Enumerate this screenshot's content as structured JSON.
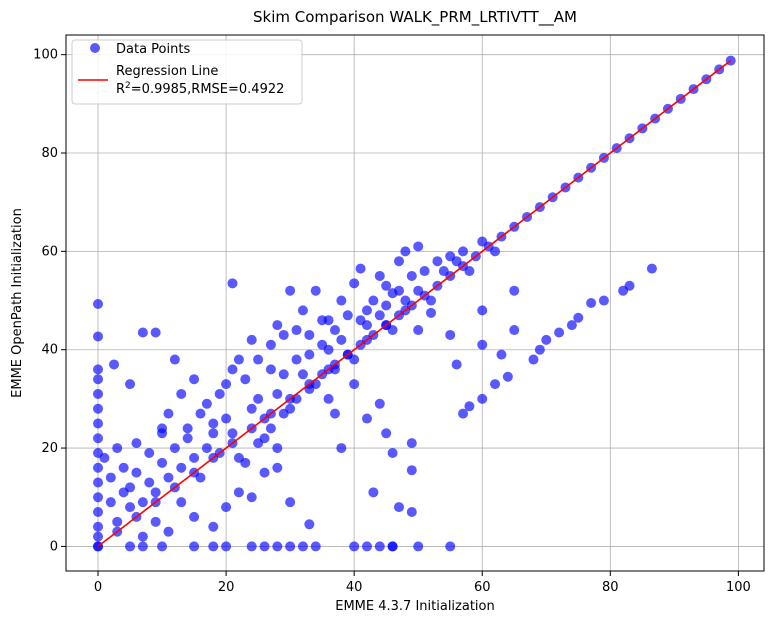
{
  "chart_data": {
    "type": "scatter",
    "title": "Skim Comparison WALK_PRM_LRTIVTT__AM",
    "xlabel": "EMME 4.3.7 Initialization",
    "ylabel": "EMME OpenPath Initialization",
    "xlim": [
      -5,
      104
    ],
    "ylim": [
      -5,
      104
    ],
    "xticks": [
      0,
      20,
      40,
      60,
      80,
      100
    ],
    "yticks": [
      0,
      20,
      40,
      60,
      80,
      100
    ],
    "grid": true,
    "legend_position": "top-left",
    "legend": {
      "points_label": "Data Points",
      "line_label": "Regression Line",
      "stats_r2": "=0.9985,RMSE=0.4922"
    },
    "colors": {
      "points": "#0000ff",
      "line": "#ff0000",
      "grid": "#b0b0b0"
    },
    "series": [
      {
        "name": "Data Points",
        "points": [
          [
            0,
            0
          ],
          [
            0,
            49.3
          ],
          [
            0,
            42.7
          ],
          [
            0,
            36
          ],
          [
            0,
            34
          ],
          [
            0,
            31
          ],
          [
            0,
            28
          ],
          [
            0,
            25
          ],
          [
            0,
            22
          ],
          [
            0,
            19
          ],
          [
            0,
            16
          ],
          [
            0,
            13
          ],
          [
            0,
            10
          ],
          [
            0,
            7
          ],
          [
            0,
            4
          ],
          [
            0,
            2
          ],
          [
            2.5,
            37
          ],
          [
            5,
            33
          ],
          [
            7,
            43.5
          ],
          [
            9,
            43.5
          ],
          [
            12,
            38
          ],
          [
            1,
            18
          ],
          [
            3,
            20
          ],
          [
            2,
            14
          ],
          [
            4,
            16
          ],
          [
            6,
            21
          ],
          [
            5,
            12
          ],
          [
            8,
            19
          ],
          [
            10,
            23
          ],
          [
            11,
            27
          ],
          [
            13,
            31
          ],
          [
            15,
            34
          ],
          [
            17,
            29
          ],
          [
            18,
            25
          ],
          [
            20,
            33
          ],
          [
            21,
            53.5
          ],
          [
            22,
            38
          ],
          [
            24,
            42
          ],
          [
            25,
            30
          ],
          [
            27,
            41
          ],
          [
            28,
            45
          ],
          [
            29,
            35
          ],
          [
            30,
            52
          ],
          [
            31,
            44
          ],
          [
            32,
            48
          ],
          [
            33,
            39
          ],
          [
            34,
            52
          ],
          [
            35,
            41
          ],
          [
            36,
            46
          ],
          [
            37,
            36
          ],
          [
            38,
            50
          ],
          [
            40,
            53.5
          ],
          [
            41,
            56.5
          ],
          [
            42,
            48
          ],
          [
            44,
            55
          ],
          [
            45,
            53
          ],
          [
            46,
            51.5
          ],
          [
            47,
            58
          ],
          [
            48,
            60
          ],
          [
            50,
            61
          ],
          [
            36,
            30
          ],
          [
            37,
            27
          ],
          [
            38,
            20
          ],
          [
            40,
            33
          ],
          [
            42,
            26
          ],
          [
            44,
            29
          ],
          [
            45,
            23
          ],
          [
            46,
            19
          ],
          [
            47,
            8
          ],
          [
            49,
            21
          ],
          [
            49,
            15.5
          ],
          [
            49,
            7
          ],
          [
            33,
            4.5
          ],
          [
            30,
            9
          ],
          [
            28,
            16
          ],
          [
            26,
            15
          ],
          [
            24,
            10
          ],
          [
            22,
            11
          ],
          [
            20,
            8
          ],
          [
            18,
            4
          ],
          [
            15,
            6
          ],
          [
            13,
            9
          ],
          [
            11,
            3
          ],
          [
            9,
            5
          ],
          [
            7,
            2
          ],
          [
            0,
            0
          ],
          [
            5,
            0
          ],
          [
            7,
            0
          ],
          [
            10,
            0
          ],
          [
            15,
            0
          ],
          [
            18,
            0
          ],
          [
            20,
            0
          ],
          [
            24,
            0
          ],
          [
            26,
            0
          ],
          [
            28,
            0
          ],
          [
            30,
            0
          ],
          [
            32,
            0
          ],
          [
            34,
            0
          ],
          [
            40,
            0
          ],
          [
            42,
            0
          ],
          [
            44,
            0
          ],
          [
            46,
            0
          ],
          [
            50,
            0
          ],
          [
            55,
            0
          ],
          [
            50,
            44
          ],
          [
            52,
            47.5
          ],
          [
            55,
            43
          ],
          [
            56,
            37
          ],
          [
            57,
            27
          ],
          [
            58,
            28.5
          ],
          [
            60,
            30
          ],
          [
            60,
            41
          ],
          [
            60,
            48
          ],
          [
            62,
            33
          ],
          [
            63,
            39
          ],
          [
            64,
            34.5
          ],
          [
            65,
            44
          ],
          [
            65,
            52
          ],
          [
            68,
            38
          ],
          [
            69,
            40
          ],
          [
            70,
            42
          ],
          [
            72,
            43.5
          ],
          [
            74,
            45
          ],
          [
            75,
            46.5
          ],
          [
            77,
            49.5
          ],
          [
            79,
            50
          ],
          [
            82,
            52
          ],
          [
            83,
            53
          ],
          [
            86.5,
            56.5
          ],
          [
            46,
            0
          ],
          [
            43,
            11
          ],
          [
            10,
            24
          ],
          [
            14,
            22
          ],
          [
            16,
            14
          ],
          [
            19,
            19
          ],
          [
            21,
            23
          ],
          [
            23,
            17
          ],
          [
            25,
            21
          ],
          [
            27,
            24
          ],
          [
            29,
            27
          ],
          [
            31,
            30
          ],
          [
            33,
            32
          ],
          [
            35,
            35
          ],
          [
            37,
            37
          ],
          [
            39,
            39
          ],
          [
            41,
            41
          ],
          [
            43,
            43
          ],
          [
            45,
            45
          ],
          [
            47,
            47
          ],
          [
            49,
            49
          ],
          [
            51,
            51
          ],
          [
            53,
            53
          ],
          [
            55,
            55
          ],
          [
            57,
            57
          ],
          [
            59,
            59
          ],
          [
            61,
            61
          ],
          [
            63,
            63
          ],
          [
            65,
            65
          ],
          [
            67,
            67
          ],
          [
            69,
            69
          ],
          [
            71,
            71
          ],
          [
            73,
            73
          ],
          [
            75,
            75
          ],
          [
            77,
            77
          ],
          [
            79,
            79
          ],
          [
            81,
            81
          ],
          [
            83,
            83
          ],
          [
            85,
            85
          ],
          [
            87,
            87
          ],
          [
            89,
            89
          ],
          [
            91,
            91
          ],
          [
            93,
            93
          ],
          [
            95,
            95
          ],
          [
            97,
            97
          ],
          [
            98.8,
            98.8
          ],
          [
            3,
            3
          ],
          [
            6,
            6
          ],
          [
            9,
            9
          ],
          [
            12,
            12
          ],
          [
            15,
            15
          ],
          [
            18,
            18
          ],
          [
            21,
            21
          ],
          [
            24,
            24
          ],
          [
            27,
            27
          ],
          [
            30,
            30
          ],
          [
            33,
            33
          ],
          [
            36,
            36
          ],
          [
            39,
            39
          ],
          [
            42,
            42
          ],
          [
            45,
            45
          ],
          [
            48,
            48
          ],
          [
            26,
            26
          ],
          [
            28,
            31
          ],
          [
            30,
            28
          ],
          [
            32,
            35
          ],
          [
            34,
            33
          ],
          [
            36,
            40
          ],
          [
            38,
            42
          ],
          [
            40,
            38
          ],
          [
            42,
            45
          ],
          [
            44,
            47
          ],
          [
            46,
            44
          ],
          [
            48,
            50
          ],
          [
            50,
            52
          ],
          [
            52,
            50
          ],
          [
            54,
            56
          ],
          [
            56,
            58
          ],
          [
            58,
            56
          ],
          [
            60,
            62
          ],
          [
            62,
            60
          ],
          [
            20,
            26
          ],
          [
            22,
            18
          ],
          [
            24,
            28
          ],
          [
            26,
            22
          ],
          [
            28,
            20
          ],
          [
            17,
            20
          ],
          [
            15,
            18
          ],
          [
            13,
            16
          ],
          [
            11,
            14
          ],
          [
            9,
            11
          ],
          [
            7,
            9
          ],
          [
            5,
            8
          ],
          [
            3,
            5
          ],
          [
            2,
            9
          ],
          [
            4,
            11
          ],
          [
            6,
            15
          ],
          [
            8,
            13
          ],
          [
            10,
            17
          ],
          [
            12,
            20
          ],
          [
            14,
            24
          ],
          [
            16,
            27
          ],
          [
            18,
            23
          ],
          [
            19,
            31
          ],
          [
            21,
            36
          ],
          [
            23,
            34
          ],
          [
            25,
            38
          ],
          [
            27,
            36
          ],
          [
            29,
            43
          ],
          [
            31,
            38
          ],
          [
            33,
            43
          ],
          [
            35,
            46
          ],
          [
            37,
            44
          ],
          [
            39,
            47
          ],
          [
            41,
            46
          ],
          [
            43,
            50
          ],
          [
            45,
            49
          ],
          [
            47,
            52
          ],
          [
            49,
            55
          ],
          [
            51,
            56
          ],
          [
            53,
            58
          ],
          [
            55,
            59
          ],
          [
            57,
            60
          ]
        ]
      },
      {
        "name": "Regression Line",
        "line": [
          [
            0,
            0
          ],
          [
            98.8,
            98.8
          ]
        ]
      }
    ]
  }
}
